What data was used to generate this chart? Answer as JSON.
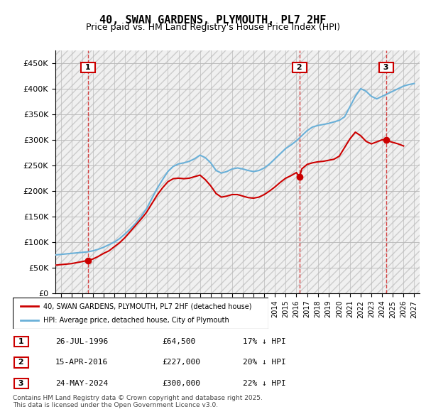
{
  "title": "40, SWAN GARDENS, PLYMOUTH, PL7 2HF",
  "subtitle": "Price paid vs. HM Land Registry's House Price Index (HPI)",
  "legend_line1": "40, SWAN GARDENS, PLYMOUTH, PL7 2HF (detached house)",
  "legend_line2": "HPI: Average price, detached house, City of Plymouth",
  "footer": "Contains HM Land Registry data © Crown copyright and database right 2025.\nThis data is licensed under the Open Government Licence v3.0.",
  "sales": [
    {
      "num": 1,
      "date": "26-JUL-1996",
      "price": 64500,
      "pct": "17% ↓ HPI",
      "x_year": 1996.56
    },
    {
      "num": 2,
      "date": "15-APR-2016",
      "price": 227000,
      "pct": "20% ↓ HPI",
      "x_year": 2016.29
    },
    {
      "num": 3,
      "date": "24-MAY-2024",
      "price": 300000,
      "pct": "22% ↓ HPI",
      "x_year": 2024.39
    }
  ],
  "hpi_color": "#6ab0d8",
  "price_color": "#cc0000",
  "background_hatch_color": "#e8e8e8",
  "grid_color": "#cccccc",
  "ylim": [
    0,
    475000
  ],
  "xlim_start": 1993.5,
  "xlim_end": 2027.5,
  "hpi_x": [
    1993.5,
    1994,
    1994.5,
    1995,
    1995.5,
    1996,
    1996.5,
    1997,
    1997.5,
    1998,
    1998.5,
    1999,
    1999.5,
    2000,
    2000.5,
    2001,
    2001.5,
    2002,
    2002.5,
    2003,
    2003.5,
    2004,
    2004.5,
    2005,
    2005.5,
    2006,
    2006.5,
    2007,
    2007.5,
    2008,
    2008.5,
    2009,
    2009.5,
    2010,
    2010.5,
    2011,
    2011.5,
    2012,
    2012.5,
    2013,
    2013.5,
    2014,
    2014.5,
    2015,
    2015.5,
    2016,
    2016.5,
    2017,
    2017.5,
    2018,
    2018.5,
    2019,
    2019.5,
    2020,
    2020.5,
    2021,
    2021.5,
    2022,
    2022.5,
    2023,
    2023.5,
    2024,
    2024.5,
    2025,
    2025.5,
    2026,
    2026.5,
    2027
  ],
  "hpi_y": [
    75000,
    76000,
    77000,
    78000,
    79000,
    80000,
    81000,
    83000,
    86000,
    90000,
    95000,
    100000,
    107000,
    116000,
    126000,
    137000,
    150000,
    165000,
    185000,
    205000,
    222000,
    238000,
    248000,
    253000,
    255000,
    258000,
    263000,
    270000,
    265000,
    255000,
    240000,
    235000,
    238000,
    243000,
    245000,
    243000,
    240000,
    238000,
    240000,
    245000,
    253000,
    263000,
    273000,
    283000,
    290000,
    298000,
    308000,
    318000,
    325000,
    328000,
    330000,
    332000,
    335000,
    338000,
    345000,
    365000,
    385000,
    400000,
    395000,
    385000,
    380000,
    385000,
    390000,
    395000,
    400000,
    405000,
    408000,
    410000
  ],
  "price_x": [
    1993.5,
    1994,
    1994.5,
    1995,
    1995.5,
    1996,
    1996.56,
    1997,
    1997.5,
    1998,
    1998.5,
    1999,
    1999.5,
    2000,
    2000.5,
    2001,
    2001.5,
    2002,
    2002.5,
    2003,
    2003.5,
    2004,
    2004.5,
    2005,
    2005.5,
    2006,
    2006.5,
    2007,
    2007.5,
    2008,
    2008.5,
    2009,
    2009.5,
    2010,
    2010.5,
    2011,
    2011.5,
    2012,
    2012.5,
    2013,
    2013.5,
    2014,
    2014.5,
    2015,
    2015.5,
    2016,
    2016.29,
    2016.5,
    2017,
    2017.5,
    2018,
    2018.5,
    2019,
    2019.5,
    2020,
    2020.5,
    2021,
    2021.5,
    2022,
    2022.5,
    2023,
    2023.5,
    2024,
    2024.39,
    2024.5,
    2025,
    2025.5,
    2026
  ],
  "price_y": [
    55000,
    56000,
    57000,
    58000,
    60000,
    62000,
    64500,
    67000,
    72000,
    78000,
    83000,
    91000,
    99000,
    109000,
    121000,
    133000,
    145000,
    158000,
    175000,
    192000,
    206000,
    218000,
    224000,
    225000,
    224000,
    225000,
    228000,
    231000,
    222000,
    210000,
    195000,
    188000,
    190000,
    193000,
    193000,
    190000,
    187000,
    186000,
    188000,
    193000,
    200000,
    208000,
    217000,
    225000,
    230000,
    236000,
    227000,
    243000,
    252000,
    255000,
    257000,
    258000,
    260000,
    262000,
    268000,
    285000,
    302000,
    315000,
    308000,
    297000,
    292000,
    296000,
    300000,
    300000,
    298000,
    295000,
    292000,
    288000
  ]
}
